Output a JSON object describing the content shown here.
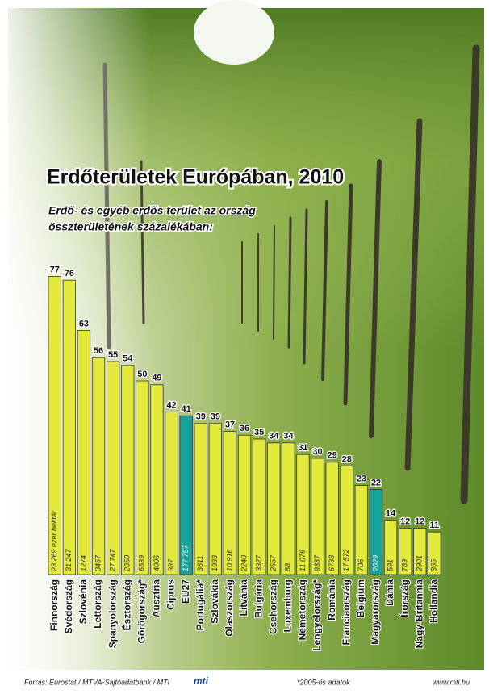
{
  "chart_data": {
    "type": "bar",
    "title": "Erdőterületek Európában, 2010",
    "subtitle": [
      "Erdő- és egyéb erdős terület az ország",
      "összterületének százalékában:"
    ],
    "categories": [
      "Finnország",
      "Svédország",
      "Szlovénia",
      "Lettország",
      "Spanyolország",
      "Észtország",
      "Görögország*",
      "Ausztria",
      "Ciprus",
      "EU27",
      "Portugália*",
      "Szlovákia",
      "Olaszország",
      "Litvánia",
      "Bulgária",
      "Csehország",
      "Luxemburg",
      "Németország",
      "Lengyelország*",
      "Románia",
      "Franciaország",
      "Belgium",
      "Magyarország",
      "Dánia",
      "Írország",
      "Nagy-Britannia",
      "Hollandia"
    ],
    "values": [
      77,
      76,
      63,
      56,
      55,
      54,
      50,
      49,
      42,
      41,
      39,
      39,
      37,
      36,
      35,
      34,
      34,
      31,
      30,
      29,
      28,
      23,
      22,
      14,
      12,
      12,
      11
    ],
    "area_labels": [
      "23 269 ezer hektár",
      "31 247",
      "1274",
      "3467",
      "27 747",
      "2350",
      "6539",
      "4006",
      "387",
      "177 757",
      "3611",
      "1933",
      "10 916",
      "2240",
      "3927",
      "2657",
      "88",
      "11 076",
      "9337",
      "6733",
      "17 572",
      "706",
      "2029",
      "591",
      "789",
      "2901",
      "365"
    ],
    "colors": [
      "#e4ea3c",
      "#e4ea3c",
      "#e4ea3c",
      "#e4ea3c",
      "#e4ea3c",
      "#e4ea3c",
      "#e4ea3c",
      "#e4ea3c",
      "#e4ea3c",
      "#16a39b",
      "#e4ea3c",
      "#e4ea3c",
      "#e4ea3c",
      "#e4ea3c",
      "#e4ea3c",
      "#e4ea3c",
      "#e4ea3c",
      "#e4ea3c",
      "#e4ea3c",
      "#e4ea3c",
      "#e4ea3c",
      "#e4ea3c",
      "#16a39b",
      "#e4ea3c",
      "#e4ea3c",
      "#e4ea3c",
      "#e4ea3c"
    ],
    "source": "Forrás: Eurostat / MTVA-Sajtóadatbank / MTI",
    "logo": "mti",
    "note": "*2005-ös adatok",
    "website": "www.mti.hu"
  }
}
